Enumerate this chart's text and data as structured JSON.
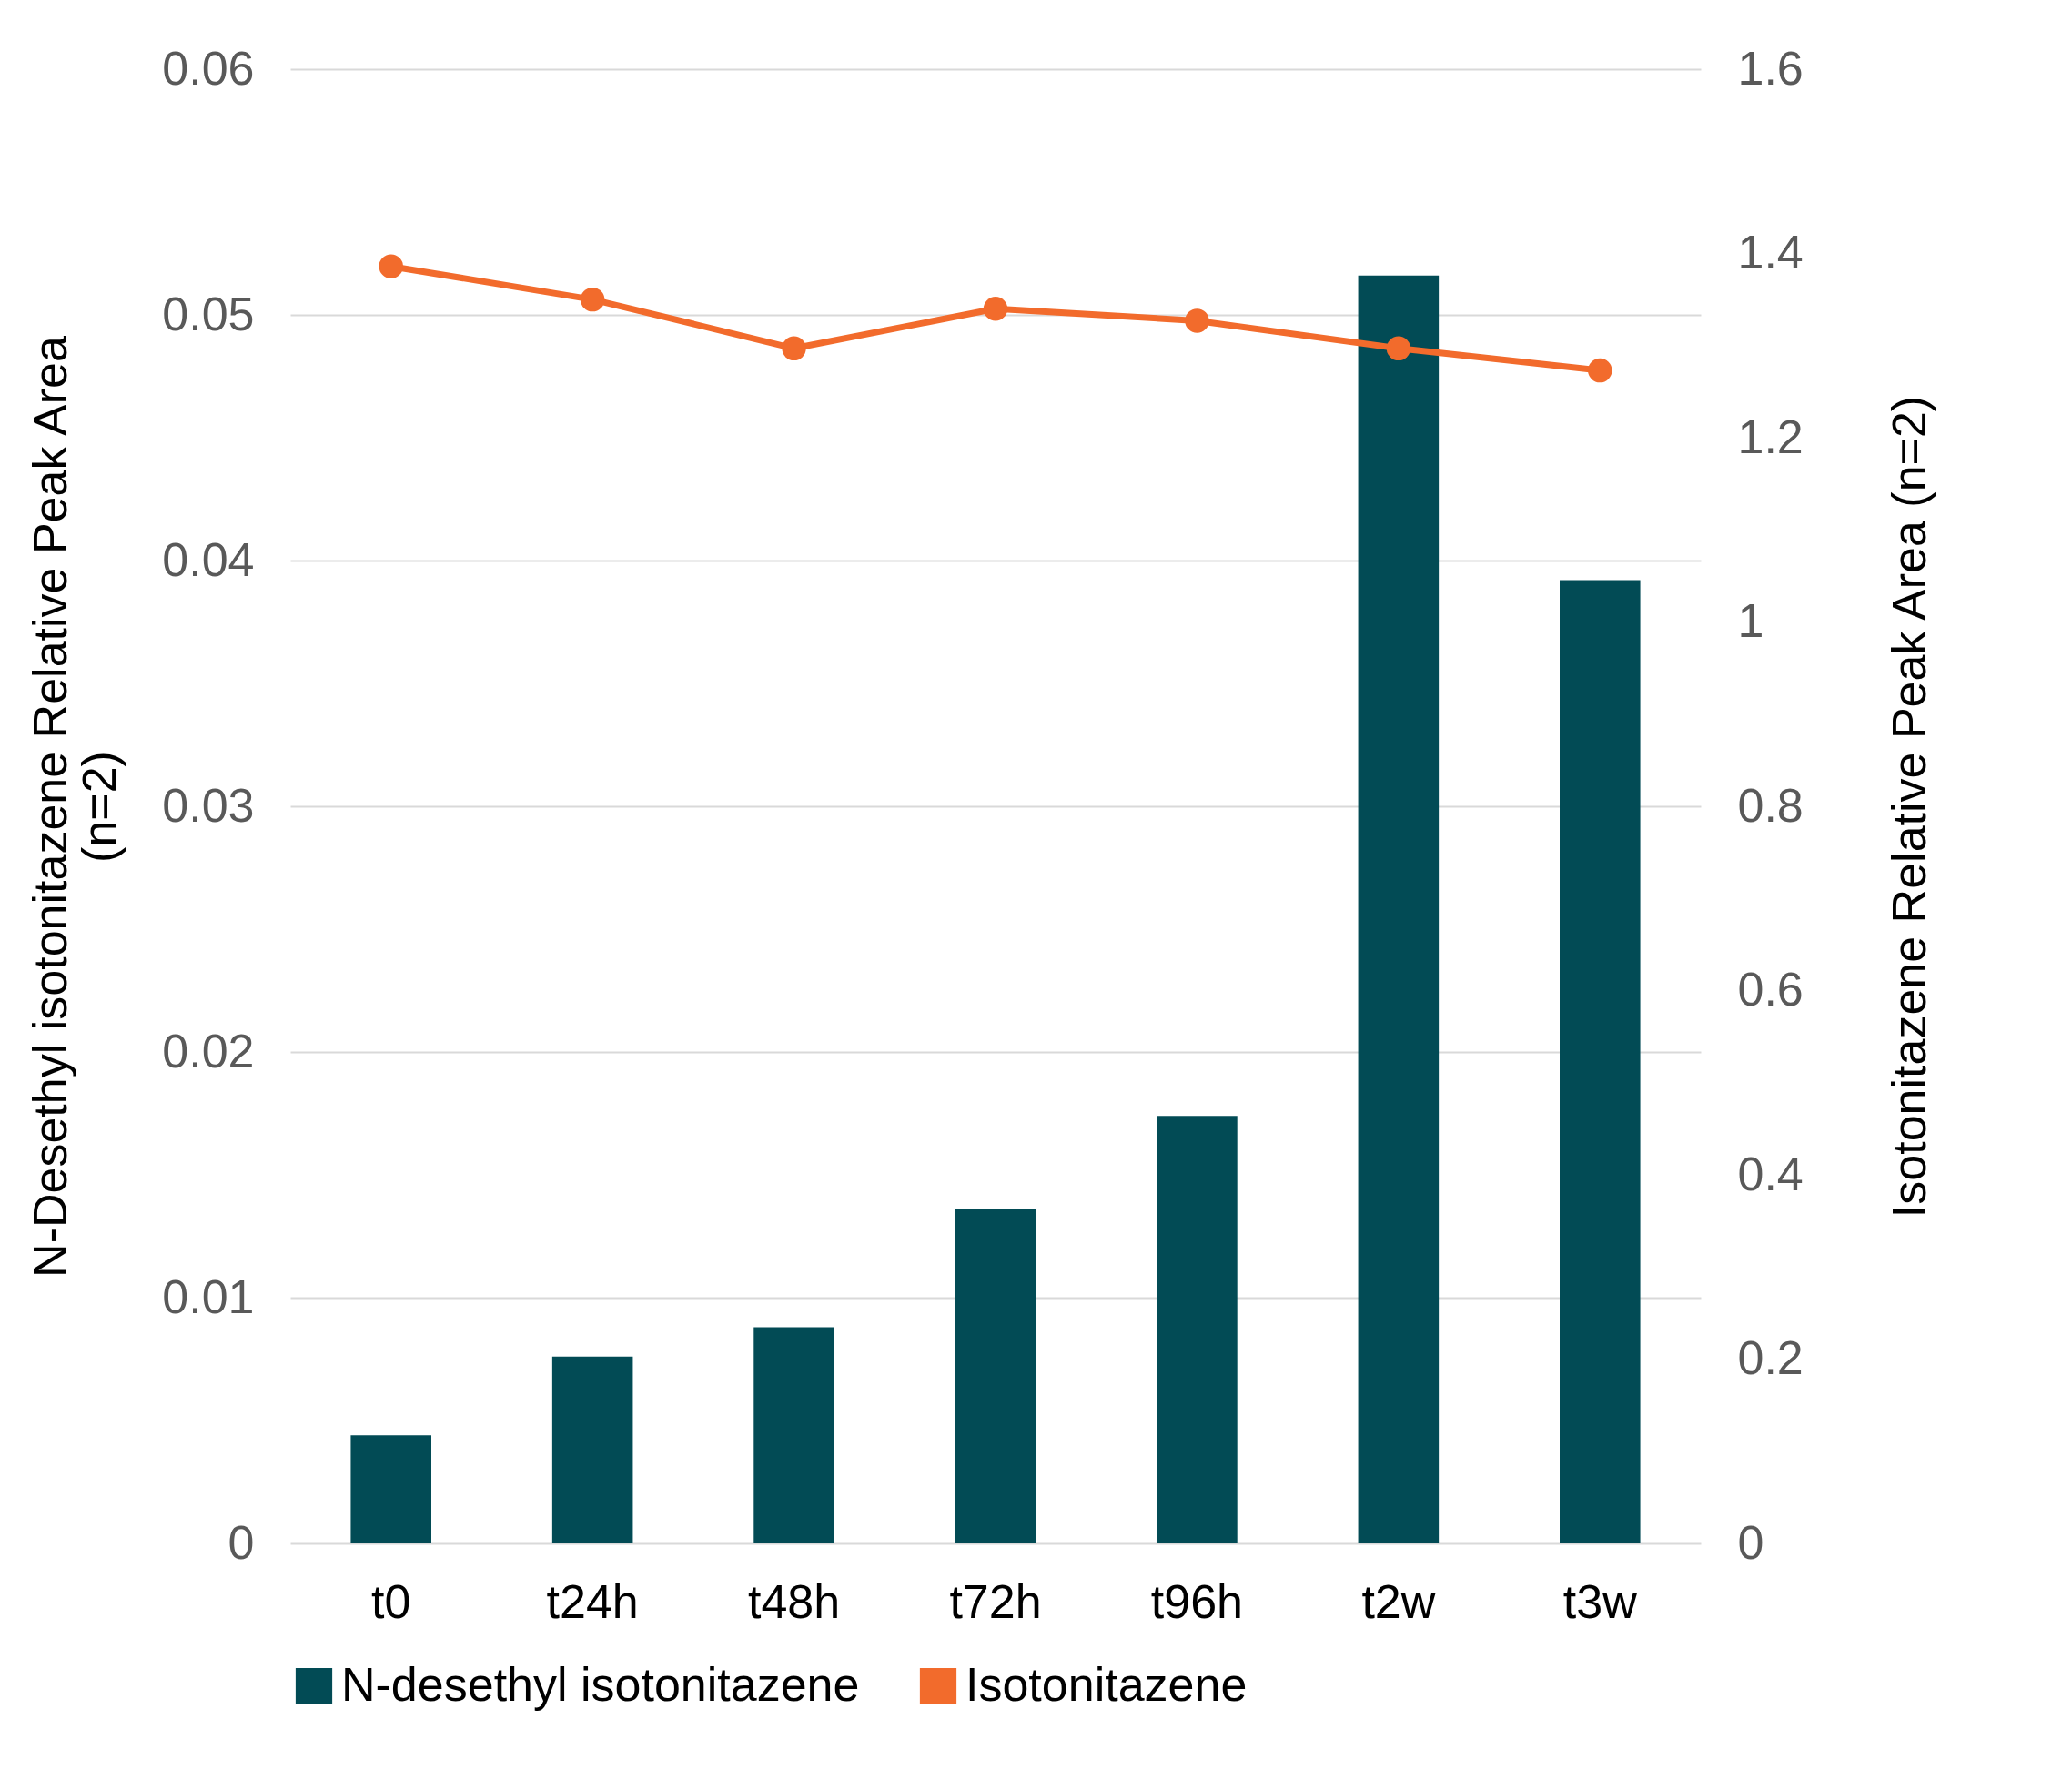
{
  "chart_data": {
    "type": "bar",
    "categories": [
      "t0",
      "t24h",
      "t48h",
      "t72h",
      "t96h",
      "t2w",
      "t3w"
    ],
    "ylabel": "N-Desethyl isotonitazene Relative Peak Area (n=2)",
    "y2label": "Isotonitazene Relative Peak Area (n=2)",
    "series": [
      {
        "name": "N-desethyl isotonitazene",
        "color": "#024b55",
        "values": [
          0.0044,
          0.0076,
          0.0088,
          0.0136,
          0.0174,
          0.0516,
          0.0392
        ]
      },
      {
        "name": "Isotonitazene",
        "type": "line",
        "axis": "y2",
        "color": "#f26b2c",
        "values": [
          1.386,
          1.35,
          1.297,
          1.34,
          1.327,
          1.297,
          1.273
        ]
      }
    ],
    "ylim": [
      0,
      0.06
    ],
    "yticks": [
      0,
      0.01,
      0.02,
      0.03,
      0.04,
      0.05,
      0.06
    ],
    "y2lim": [
      0,
      1.6
    ],
    "y2ticks": [
      0,
      0.2,
      0.4,
      0.6,
      0.8,
      1,
      1.2,
      1.4,
      1.6
    ],
    "grid": "y",
    "legend": "bottom",
    "marker": "circle"
  }
}
